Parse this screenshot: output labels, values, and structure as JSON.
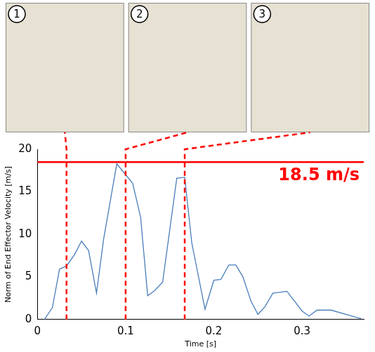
{
  "chart_data": {
    "type": "line",
    "x_label": "Time [s]",
    "y_label": "Norm of End Effector Velocity [m/s]",
    "x": [
      0.008,
      0.017,
      0.025,
      0.033,
      0.042,
      0.05,
      0.058,
      0.067,
      0.075,
      0.09,
      0.1,
      0.108,
      0.117,
      0.125,
      0.133,
      0.142,
      0.158,
      0.167,
      0.175,
      0.19,
      0.2,
      0.208,
      0.217,
      0.225,
      0.233,
      0.242,
      0.25,
      0.258,
      0.267,
      0.283,
      0.3,
      0.308,
      0.317,
      0.333,
      0.35,
      0.367
    ],
    "values": [
      0,
      1.4,
      5.9,
      6.3,
      7.6,
      9.2,
      8.1,
      3.1,
      9.4,
      18.3,
      17.0,
      16.0,
      12.0,
      2.8,
      3.4,
      4.4,
      16.6,
      16.7,
      9.0,
      1.2,
      4.6,
      4.7,
      6.4,
      6.4,
      5.0,
      2.2,
      0.6,
      1.5,
      3.1,
      3.3,
      1.0,
      0.4,
      1.1,
      1.1,
      0.6,
      0.1
    ],
    "color": "#4a7ebb",
    "xlim": [
      0,
      0.37
    ],
    "xticks": [
      0,
      0.1,
      0.2,
      0.3
    ],
    "ylim": [
      0,
      20
    ],
    "yticks": [
      0,
      5,
      10,
      15,
      20
    ],
    "grid": false,
    "hlines": [
      {
        "value": 18.5,
        "label": "18.5 m/s",
        "color": "#ff0000"
      }
    ],
    "vlines": [
      {
        "value": 0.033,
        "label": "1",
        "color": "#ff0000"
      },
      {
        "value": 0.1,
        "label": "2",
        "color": "#ff0000"
      },
      {
        "value": 0.167,
        "label": "3",
        "color": "#ff0000"
      }
    ]
  }
}
